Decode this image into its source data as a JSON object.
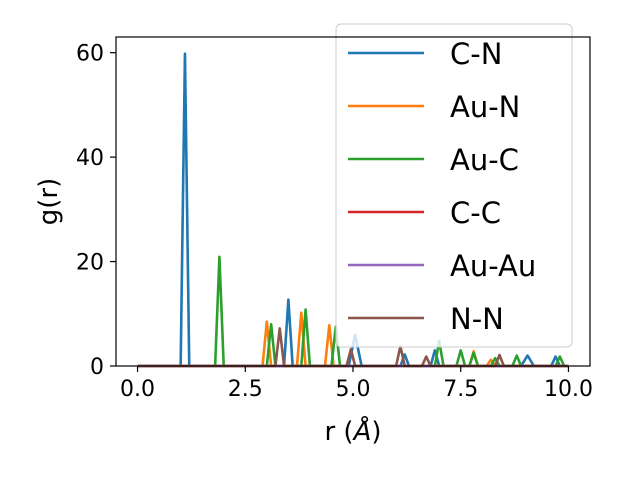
{
  "chart_data": {
    "type": "line",
    "xlabel_prefix": "r (",
    "xlabel_symbol": "Å",
    "xlabel_suffix": ")",
    "ylabel": "g(r)",
    "xlim": [
      -0.5,
      10.5
    ],
    "ylim": [
      0,
      63
    ],
    "xticks": [
      0.0,
      2.5,
      5.0,
      7.5,
      10.0
    ],
    "xtick_labels": [
      "0.0",
      "2.5",
      "5.0",
      "7.5",
      "10.0"
    ],
    "yticks": [
      0,
      20,
      40,
      60
    ],
    "ytick_labels": [
      "0",
      "20",
      "40",
      "60"
    ],
    "grid": false,
    "legend_position": "upper right",
    "series": [
      {
        "name": "C-N",
        "color": "#1f77b4",
        "x": [
          0,
          1.0,
          1.1,
          1.2,
          3.4,
          3.5,
          3.6,
          4.9,
          5.05,
          5.2,
          6.1,
          6.2,
          6.3,
          6.8,
          6.9,
          7.0,
          8.9,
          9.05,
          9.2,
          9.6,
          9.7,
          9.8,
          10.0
        ],
        "y": [
          0,
          0,
          59.8,
          0,
          0,
          12.7,
          0,
          0,
          6.0,
          0,
          0,
          2.2,
          0,
          0,
          3.0,
          0,
          0,
          2.0,
          0,
          0,
          1.8,
          0,
          0
        ]
      },
      {
        "name": "Au-N",
        "color": "#ff7f0e",
        "x": [
          0,
          2.9,
          3.0,
          3.1,
          3.7,
          3.8,
          3.9,
          4.35,
          4.45,
          4.55,
          7.7,
          7.8,
          7.9,
          8.1,
          8.2,
          8.3,
          10.0
        ],
        "y": [
          0,
          0,
          8.5,
          0,
          0,
          10.2,
          0,
          0,
          7.8,
          0,
          0,
          2.8,
          0,
          0,
          1.2,
          0,
          0
        ]
      },
      {
        "name": "Au-C",
        "color": "#2ca02c",
        "x": [
          0,
          1.8,
          1.9,
          2.0,
          3.0,
          3.1,
          3.2,
          3.8,
          3.9,
          4.0,
          4.5,
          4.6,
          4.7,
          6.9,
          7.0,
          7.1,
          7.4,
          7.5,
          7.6,
          7.7,
          7.8,
          7.9,
          8.2,
          8.3,
          8.4,
          8.7,
          8.8,
          8.9,
          9.7,
          9.8,
          9.9,
          10.0
        ],
        "y": [
          0,
          0,
          20.9,
          0,
          0,
          8.0,
          0,
          0,
          10.8,
          0,
          0,
          7.5,
          0,
          0,
          4.8,
          0,
          0,
          3.0,
          0,
          0,
          2.5,
          0,
          0,
          1.5,
          0,
          0,
          2.0,
          0,
          0,
          1.8,
          0,
          0
        ]
      },
      {
        "name": "C-C",
        "color": "#d62728",
        "x": [
          0,
          10.0
        ],
        "y": [
          0,
          0
        ]
      },
      {
        "name": "Au-Au",
        "color": "#9467bd",
        "x": [
          0,
          10.0
        ],
        "y": [
          0,
          0
        ]
      },
      {
        "name": "N-N",
        "color": "#8c564b",
        "x": [
          0,
          3.2,
          3.3,
          3.4,
          4.85,
          4.95,
          5.05,
          6.0,
          6.1,
          6.2,
          6.6,
          6.7,
          6.8,
          8.3,
          8.4,
          8.5,
          10.0
        ],
        "y": [
          0,
          0,
          7.2,
          0,
          0,
          3.2,
          0,
          0,
          3.8,
          0,
          0,
          1.8,
          0,
          0,
          2.1,
          0,
          0
        ]
      }
    ]
  }
}
